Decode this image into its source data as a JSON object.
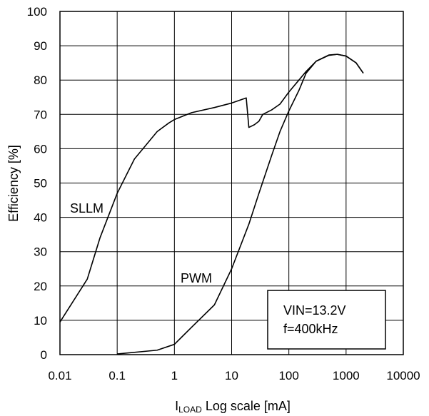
{
  "chart_data": {
    "type": "line",
    "title": "",
    "xlabel": {
      "main": "I",
      "sub": "LOAD",
      "rest": " Log scale [mA]"
    },
    "ylabel": "Efficiency [%]",
    "xscale": "log",
    "xlim": [
      0.01,
      10000
    ],
    "ylim": [
      0,
      100
    ],
    "grid": true,
    "x_ticks": [
      {
        "value": 0.01,
        "label": "0.01"
      },
      {
        "value": 0.1,
        "label": "0.1"
      },
      {
        "value": 1,
        "label": "1"
      },
      {
        "value": 10,
        "label": "10"
      },
      {
        "value": 100,
        "label": "100"
      },
      {
        "value": 1000,
        "label": "1000"
      },
      {
        "value": 10000,
        "label": "10000"
      }
    ],
    "y_ticks": [
      {
        "value": 0,
        "label": "0"
      },
      {
        "value": 10,
        "label": "10"
      },
      {
        "value": 20,
        "label": "20"
      },
      {
        "value": 30,
        "label": "30"
      },
      {
        "value": 40,
        "label": "40"
      },
      {
        "value": 50,
        "label": "50"
      },
      {
        "value": 60,
        "label": "60"
      },
      {
        "value": 70,
        "label": "70"
      },
      {
        "value": 80,
        "label": "80"
      },
      {
        "value": 90,
        "label": "90"
      },
      {
        "value": 100,
        "label": "100"
      }
    ],
    "series": [
      {
        "name": "SLLM",
        "points": [
          [
            0.01,
            9.5
          ],
          [
            0.03,
            22
          ],
          [
            0.05,
            34
          ],
          [
            0.1,
            47
          ],
          [
            0.2,
            57
          ],
          [
            0.5,
            65
          ],
          [
            0.8,
            67.5
          ],
          [
            1,
            68.5
          ],
          [
            2,
            70.5
          ],
          [
            5,
            72
          ],
          [
            10,
            73.3
          ],
          [
            18,
            74.8
          ],
          [
            20,
            66.2
          ],
          [
            25,
            67
          ],
          [
            30,
            68
          ],
          [
            35,
            70
          ],
          [
            50,
            71.3
          ],
          [
            70,
            73
          ],
          [
            100,
            76.5
          ],
          [
            150,
            80
          ],
          [
            200,
            82.5
          ],
          [
            300,
            85.5
          ],
          [
            500,
            87.2
          ],
          [
            700,
            87.5
          ],
          [
            1000,
            87
          ],
          [
            1500,
            85
          ],
          [
            2000,
            82
          ]
        ]
      },
      {
        "name": "PWM",
        "points": [
          [
            0.1,
            0.2
          ],
          [
            0.5,
            1.3
          ],
          [
            1,
            3
          ],
          [
            2,
            8
          ],
          [
            5,
            14.5
          ],
          [
            10,
            25
          ],
          [
            20,
            38
          ],
          [
            30,
            47
          ],
          [
            50,
            58
          ],
          [
            70,
            65
          ],
          [
            100,
            71
          ],
          [
            150,
            77
          ],
          [
            200,
            82
          ],
          [
            300,
            85.5
          ],
          [
            500,
            87.3
          ],
          [
            700,
            87.5
          ],
          [
            1000,
            87
          ],
          [
            1500,
            85
          ],
          [
            2000,
            82
          ]
        ]
      }
    ],
    "annotations": {
      "sllm_label": "SLLM",
      "pwm_label": "PWM",
      "box_line1": "VIN=13.2V",
      "box_line2": "f=400kHz"
    }
  }
}
